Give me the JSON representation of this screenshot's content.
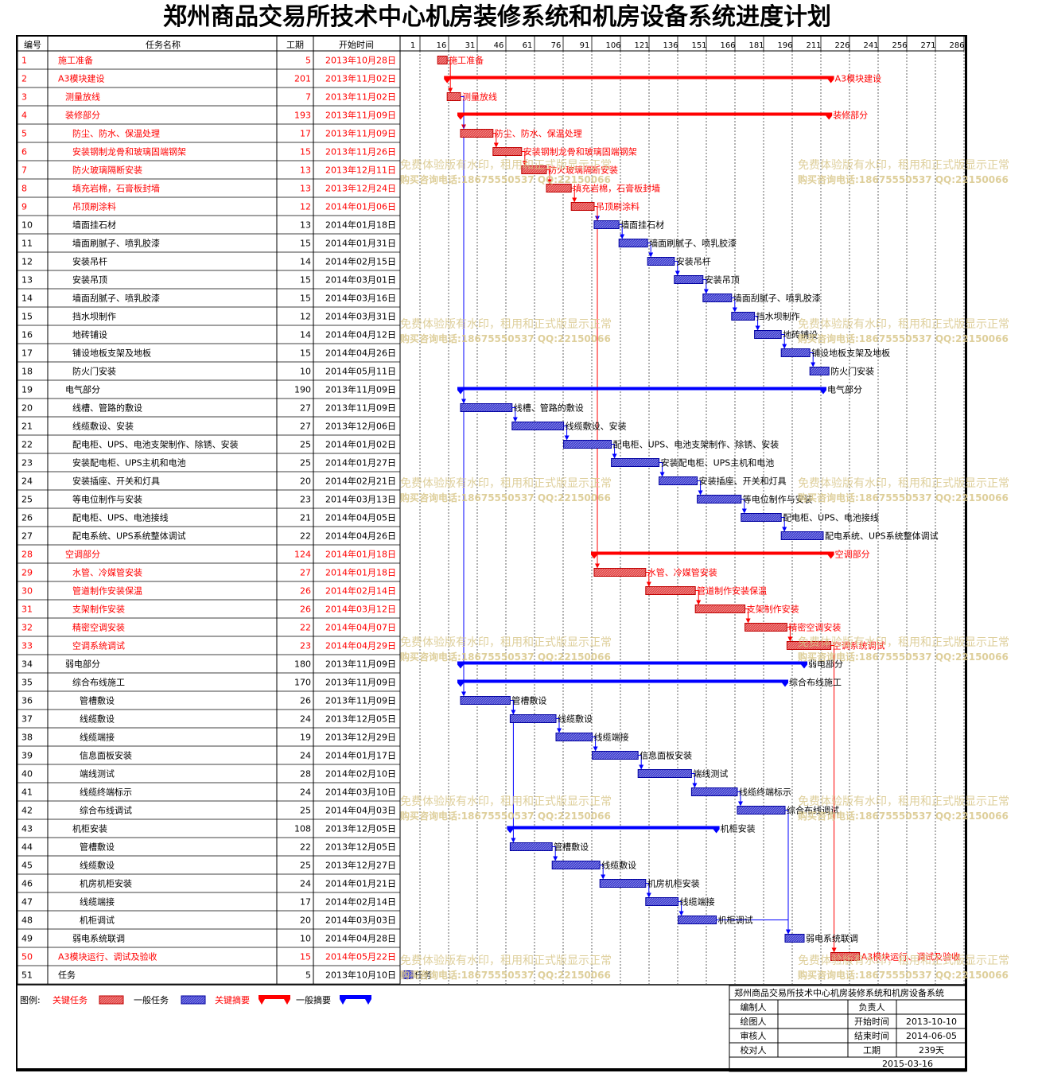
{
  "title": "郑州商品交易所技术中心机房装修系统和机房设备系统进度计划",
  "columns": {
    "id": "编号",
    "name": "任务名称",
    "duration": "工期",
    "start": "开始时间"
  },
  "colors": {
    "critical": "#ff0000",
    "normal": "#0000ff",
    "critical_bar": "#e24848",
    "normal_bar": "#3f3fd0",
    "watermark": "#d9c78a"
  },
  "chart_data": {
    "type": "gantt",
    "timescale_ticks": [
      1,
      16,
      31,
      46,
      61,
      76,
      91,
      106,
      121,
      136,
      151,
      166,
      181,
      196,
      211,
      226,
      241,
      256,
      271,
      286
    ],
    "tasks": [
      {
        "id": "1",
        "name": "施工准备",
        "duration": "5",
        "start": "2013年10月28日",
        "s": 19,
        "d": 5,
        "critical": true,
        "summary": false,
        "level": 0
      },
      {
        "id": "2",
        "name": "A3模块建设",
        "duration": "201",
        "start": "2013年11月02日",
        "s": 24,
        "d": 201,
        "critical": true,
        "summary": true,
        "level": 0
      },
      {
        "id": "3",
        "name": "测量放线",
        "duration": "7",
        "start": "2013年11月02日",
        "s": 24,
        "d": 7,
        "critical": true,
        "summary": false,
        "level": 1
      },
      {
        "id": "4",
        "name": "装修部分",
        "duration": "193",
        "start": "2013年11月09日",
        "s": 31,
        "d": 193,
        "critical": true,
        "summary": true,
        "level": 1
      },
      {
        "id": "5",
        "name": "防尘、防水、保温处理",
        "duration": "17",
        "start": "2013年11月09日",
        "s": 31,
        "d": 17,
        "critical": true,
        "summary": false,
        "level": 2
      },
      {
        "id": "6",
        "name": "安装钢制龙骨和玻璃固端钢架",
        "duration": "15",
        "start": "2013年11月26日",
        "s": 48,
        "d": 15,
        "critical": true,
        "summary": false,
        "level": 2
      },
      {
        "id": "7",
        "name": "防火玻璃隔断安装",
        "duration": "13",
        "start": "2013年12月11日",
        "s": 63,
        "d": 13,
        "critical": true,
        "summary": false,
        "level": 2
      },
      {
        "id": "8",
        "name": "填充岩棉，石膏板封墙",
        "duration": "13",
        "start": "2013年12月24日",
        "s": 76,
        "d": 13,
        "critical": true,
        "summary": false,
        "level": 2
      },
      {
        "id": "9",
        "name": "吊顶刷涂料",
        "duration": "12",
        "start": "2014年01月06日",
        "s": 89,
        "d": 12,
        "critical": true,
        "summary": false,
        "level": 2
      },
      {
        "id": "10",
        "name": "墙面挂石材",
        "duration": "13",
        "start": "2014年01月18日",
        "s": 101,
        "d": 13,
        "critical": false,
        "summary": false,
        "level": 2
      },
      {
        "id": "11",
        "name": "墙面刷腻子、喷乳胶漆",
        "duration": "15",
        "start": "2014年01月31日",
        "s": 114,
        "d": 15,
        "critical": false,
        "summary": false,
        "level": 2
      },
      {
        "id": "12",
        "name": "安装吊杆",
        "duration": "14",
        "start": "2014年02月15日",
        "s": 129,
        "d": 14,
        "critical": false,
        "summary": false,
        "level": 2
      },
      {
        "id": "13",
        "name": "安装吊顶",
        "duration": "15",
        "start": "2014年03月01日",
        "s": 143,
        "d": 15,
        "critical": false,
        "summary": false,
        "level": 2
      },
      {
        "id": "14",
        "name": "墙面刮腻子、喷乳胶漆",
        "duration": "15",
        "start": "2014年03月16日",
        "s": 158,
        "d": 15,
        "critical": false,
        "summary": false,
        "level": 2
      },
      {
        "id": "15",
        "name": "挡水坝制作",
        "duration": "12",
        "start": "2014年03月31日",
        "s": 173,
        "d": 12,
        "critical": false,
        "summary": false,
        "level": 2
      },
      {
        "id": "16",
        "name": "地砖铺设",
        "duration": "14",
        "start": "2014年04月12日",
        "s": 185,
        "d": 14,
        "critical": false,
        "summary": false,
        "level": 2
      },
      {
        "id": "17",
        "name": "铺设地板支架及地板",
        "duration": "15",
        "start": "2014年04月26日",
        "s": 199,
        "d": 15,
        "critical": false,
        "summary": false,
        "level": 2
      },
      {
        "id": "18",
        "name": "防火门安装",
        "duration": "10",
        "start": "2014年05月11日",
        "s": 214,
        "d": 10,
        "critical": false,
        "summary": false,
        "level": 2
      },
      {
        "id": "19",
        "name": "电气部分",
        "duration": "190",
        "start": "2013年11月09日",
        "s": 31,
        "d": 190,
        "critical": false,
        "summary": true,
        "level": 1
      },
      {
        "id": "20",
        "name": "线槽、管路的敷设",
        "duration": "27",
        "start": "2013年11月09日",
        "s": 31,
        "d": 27,
        "critical": false,
        "summary": false,
        "level": 2
      },
      {
        "id": "21",
        "name": "线缆敷设、安装",
        "duration": "27",
        "start": "2013年12月06日",
        "s": 58,
        "d": 27,
        "critical": false,
        "summary": false,
        "level": 2
      },
      {
        "id": "22",
        "name": "配电柜、UPS、电池支架制作、除锈、安装",
        "duration": "25",
        "start": "2014年01月02日",
        "s": 85,
        "d": 25,
        "critical": false,
        "summary": false,
        "level": 2
      },
      {
        "id": "23",
        "name": "安装配电柜、UPS主机和电池",
        "duration": "25",
        "start": "2014年01月27日",
        "s": 110,
        "d": 25,
        "critical": false,
        "summary": false,
        "level": 2
      },
      {
        "id": "24",
        "name": "安装插座、开关和灯具",
        "duration": "20",
        "start": "2014年02月21日",
        "s": 135,
        "d": 20,
        "critical": false,
        "summary": false,
        "level": 2
      },
      {
        "id": "25",
        "name": "等电位制作与安装",
        "duration": "23",
        "start": "2014年03月13日",
        "s": 155,
        "d": 23,
        "critical": false,
        "summary": false,
        "level": 2
      },
      {
        "id": "26",
        "name": "配电柜、UPS、电池接线",
        "duration": "21",
        "start": "2014年04月05日",
        "s": 178,
        "d": 21,
        "critical": false,
        "summary": false,
        "level": 2
      },
      {
        "id": "27",
        "name": "配电系统、UPS系统整体调试",
        "duration": "22",
        "start": "2014年04月26日",
        "s": 199,
        "d": 22,
        "critical": false,
        "summary": false,
        "level": 2
      },
      {
        "id": "28",
        "name": "空调部分",
        "duration": "124",
        "start": "2014年01月18日",
        "s": 101,
        "d": 124,
        "critical": true,
        "summary": true,
        "level": 1
      },
      {
        "id": "29",
        "name": "水管、冷媒管安装",
        "duration": "27",
        "start": "2014年01月18日",
        "s": 101,
        "d": 27,
        "critical": true,
        "summary": false,
        "level": 2
      },
      {
        "id": "30",
        "name": "管道制作安装保温",
        "duration": "26",
        "start": "2014年02月14日",
        "s": 128,
        "d": 26,
        "critical": true,
        "summary": false,
        "level": 2
      },
      {
        "id": "31",
        "name": "支架制作安装",
        "duration": "26",
        "start": "2014年03月12日",
        "s": 154,
        "d": 26,
        "critical": true,
        "summary": false,
        "level": 2
      },
      {
        "id": "32",
        "name": "精密空调安装",
        "duration": "22",
        "start": "2014年04月07日",
        "s": 180,
        "d": 22,
        "critical": true,
        "summary": false,
        "level": 2
      },
      {
        "id": "33",
        "name": "空调系统调试",
        "duration": "23",
        "start": "2014年04月29日",
        "s": 202,
        "d": 23,
        "critical": true,
        "summary": false,
        "level": 2
      },
      {
        "id": "34",
        "name": "弱电部分",
        "duration": "180",
        "start": "2013年11月09日",
        "s": 31,
        "d": 180,
        "critical": false,
        "summary": true,
        "level": 1
      },
      {
        "id": "35",
        "name": "综合布线施工",
        "duration": "170",
        "start": "2013年11月09日",
        "s": 31,
        "d": 170,
        "critical": false,
        "summary": true,
        "level": 2
      },
      {
        "id": "36",
        "name": "管槽敷设",
        "duration": "26",
        "start": "2013年11月09日",
        "s": 31,
        "d": 26,
        "critical": false,
        "summary": false,
        "level": 3
      },
      {
        "id": "37",
        "name": "线缆敷设",
        "duration": "24",
        "start": "2013年12月05日",
        "s": 57,
        "d": 24,
        "critical": false,
        "summary": false,
        "level": 3
      },
      {
        "id": "38",
        "name": "线缆端接",
        "duration": "19",
        "start": "2013年12月29日",
        "s": 81,
        "d": 19,
        "critical": false,
        "summary": false,
        "level": 3
      },
      {
        "id": "39",
        "name": "信息面板安装",
        "duration": "24",
        "start": "2014年01月17日",
        "s": 100,
        "d": 24,
        "critical": false,
        "summary": false,
        "level": 3
      },
      {
        "id": "40",
        "name": "端线测试",
        "duration": "28",
        "start": "2014年02月10日",
        "s": 124,
        "d": 28,
        "critical": false,
        "summary": false,
        "level": 3
      },
      {
        "id": "41",
        "name": "线缆终端标示",
        "duration": "24",
        "start": "2014年03月10日",
        "s": 152,
        "d": 24,
        "critical": false,
        "summary": false,
        "level": 3
      },
      {
        "id": "42",
        "name": "综合布线调试",
        "duration": "25",
        "start": "2014年04月03日",
        "s": 176,
        "d": 25,
        "critical": false,
        "summary": false,
        "level": 3
      },
      {
        "id": "43",
        "name": "机柜安装",
        "duration": "108",
        "start": "2013年12月05日",
        "s": 57,
        "d": 108,
        "critical": false,
        "summary": true,
        "level": 2
      },
      {
        "id": "44",
        "name": "管槽敷设",
        "duration": "22",
        "start": "2013年12月05日",
        "s": 57,
        "d": 22,
        "critical": false,
        "summary": false,
        "level": 3
      },
      {
        "id": "45",
        "name": "线缆敷设",
        "duration": "25",
        "start": "2013年12月27日",
        "s": 79,
        "d": 25,
        "critical": false,
        "summary": false,
        "level": 3
      },
      {
        "id": "46",
        "name": "机房机柜安装",
        "duration": "24",
        "start": "2014年01月21日",
        "s": 104,
        "d": 24,
        "critical": false,
        "summary": false,
        "level": 3
      },
      {
        "id": "47",
        "name": "线缆端接",
        "duration": "17",
        "start": "2014年02月14日",
        "s": 128,
        "d": 17,
        "critical": false,
        "summary": false,
        "level": 3
      },
      {
        "id": "48",
        "name": "机柜调试",
        "duration": "20",
        "start": "2014年03月03日",
        "s": 145,
        "d": 20,
        "critical": false,
        "summary": false,
        "level": 3
      },
      {
        "id": "49",
        "name": "弱电系统联调",
        "duration": "10",
        "start": "2014年04月28日",
        "s": 201,
        "d": 10,
        "critical": false,
        "summary": false,
        "level": 2
      },
      {
        "id": "50",
        "name": "A3模块运行、调试及验收",
        "duration": "15",
        "start": "2014年05月22日",
        "s": 225,
        "d": 15,
        "critical": true,
        "summary": false,
        "level": 0
      },
      {
        "id": "51",
        "name": "任务",
        "duration": "5",
        "start": "2013年10月10日",
        "s": 1,
        "d": 5,
        "critical": false,
        "summary": false,
        "level": 0
      }
    ],
    "links": [
      [
        1,
        3
      ],
      [
        3,
        5
      ],
      [
        5,
        6
      ],
      [
        6,
        7
      ],
      [
        7,
        8
      ],
      [
        8,
        9
      ],
      [
        9,
        10
      ],
      [
        10,
        11
      ],
      [
        11,
        12
      ],
      [
        12,
        13
      ],
      [
        13,
        14
      ],
      [
        14,
        15
      ],
      [
        15,
        16
      ],
      [
        16,
        17
      ],
      [
        17,
        18
      ],
      [
        3,
        20
      ],
      [
        20,
        21
      ],
      [
        21,
        22
      ],
      [
        22,
        23
      ],
      [
        23,
        24
      ],
      [
        24,
        25
      ],
      [
        25,
        26
      ],
      [
        26,
        27
      ],
      [
        9,
        29
      ],
      [
        29,
        30
      ],
      [
        30,
        31
      ],
      [
        31,
        32
      ],
      [
        32,
        33
      ],
      [
        3,
        36
      ],
      [
        36,
        37
      ],
      [
        37,
        38
      ],
      [
        38,
        39
      ],
      [
        39,
        40
      ],
      [
        40,
        41
      ],
      [
        41,
        42
      ],
      [
        36,
        44
      ],
      [
        44,
        45
      ],
      [
        45,
        46
      ],
      [
        46,
        47
      ],
      [
        47,
        48
      ],
      [
        42,
        49
      ],
      [
        48,
        49
      ],
      [
        33,
        50
      ]
    ]
  },
  "legend": {
    "label": "图例:",
    "critical_task": "关键任务",
    "normal_task": "一般任务",
    "critical_summary": "关键摘要",
    "normal_summary": "一般摘要"
  },
  "info": {
    "project_name": "郑州商品交易所技术中心机房装修系统和机房设备系统",
    "editor": "编制人",
    "owner": "负责人",
    "drawer": "绘图人",
    "start_label": "开始时间",
    "start_value": "2013-10-10",
    "reviewer": "审核人",
    "end_label": "结束时间",
    "end_value": "2014-06-05",
    "checker": "校对人",
    "duration_label": "工期",
    "duration_value": "239天",
    "print_date": "2015-03-16"
  },
  "watermark": {
    "line1": "免费体验版有水印，租用和正式版显示正常",
    "line2": "购买咨询电话:18675550537 QQ:22150066"
  }
}
